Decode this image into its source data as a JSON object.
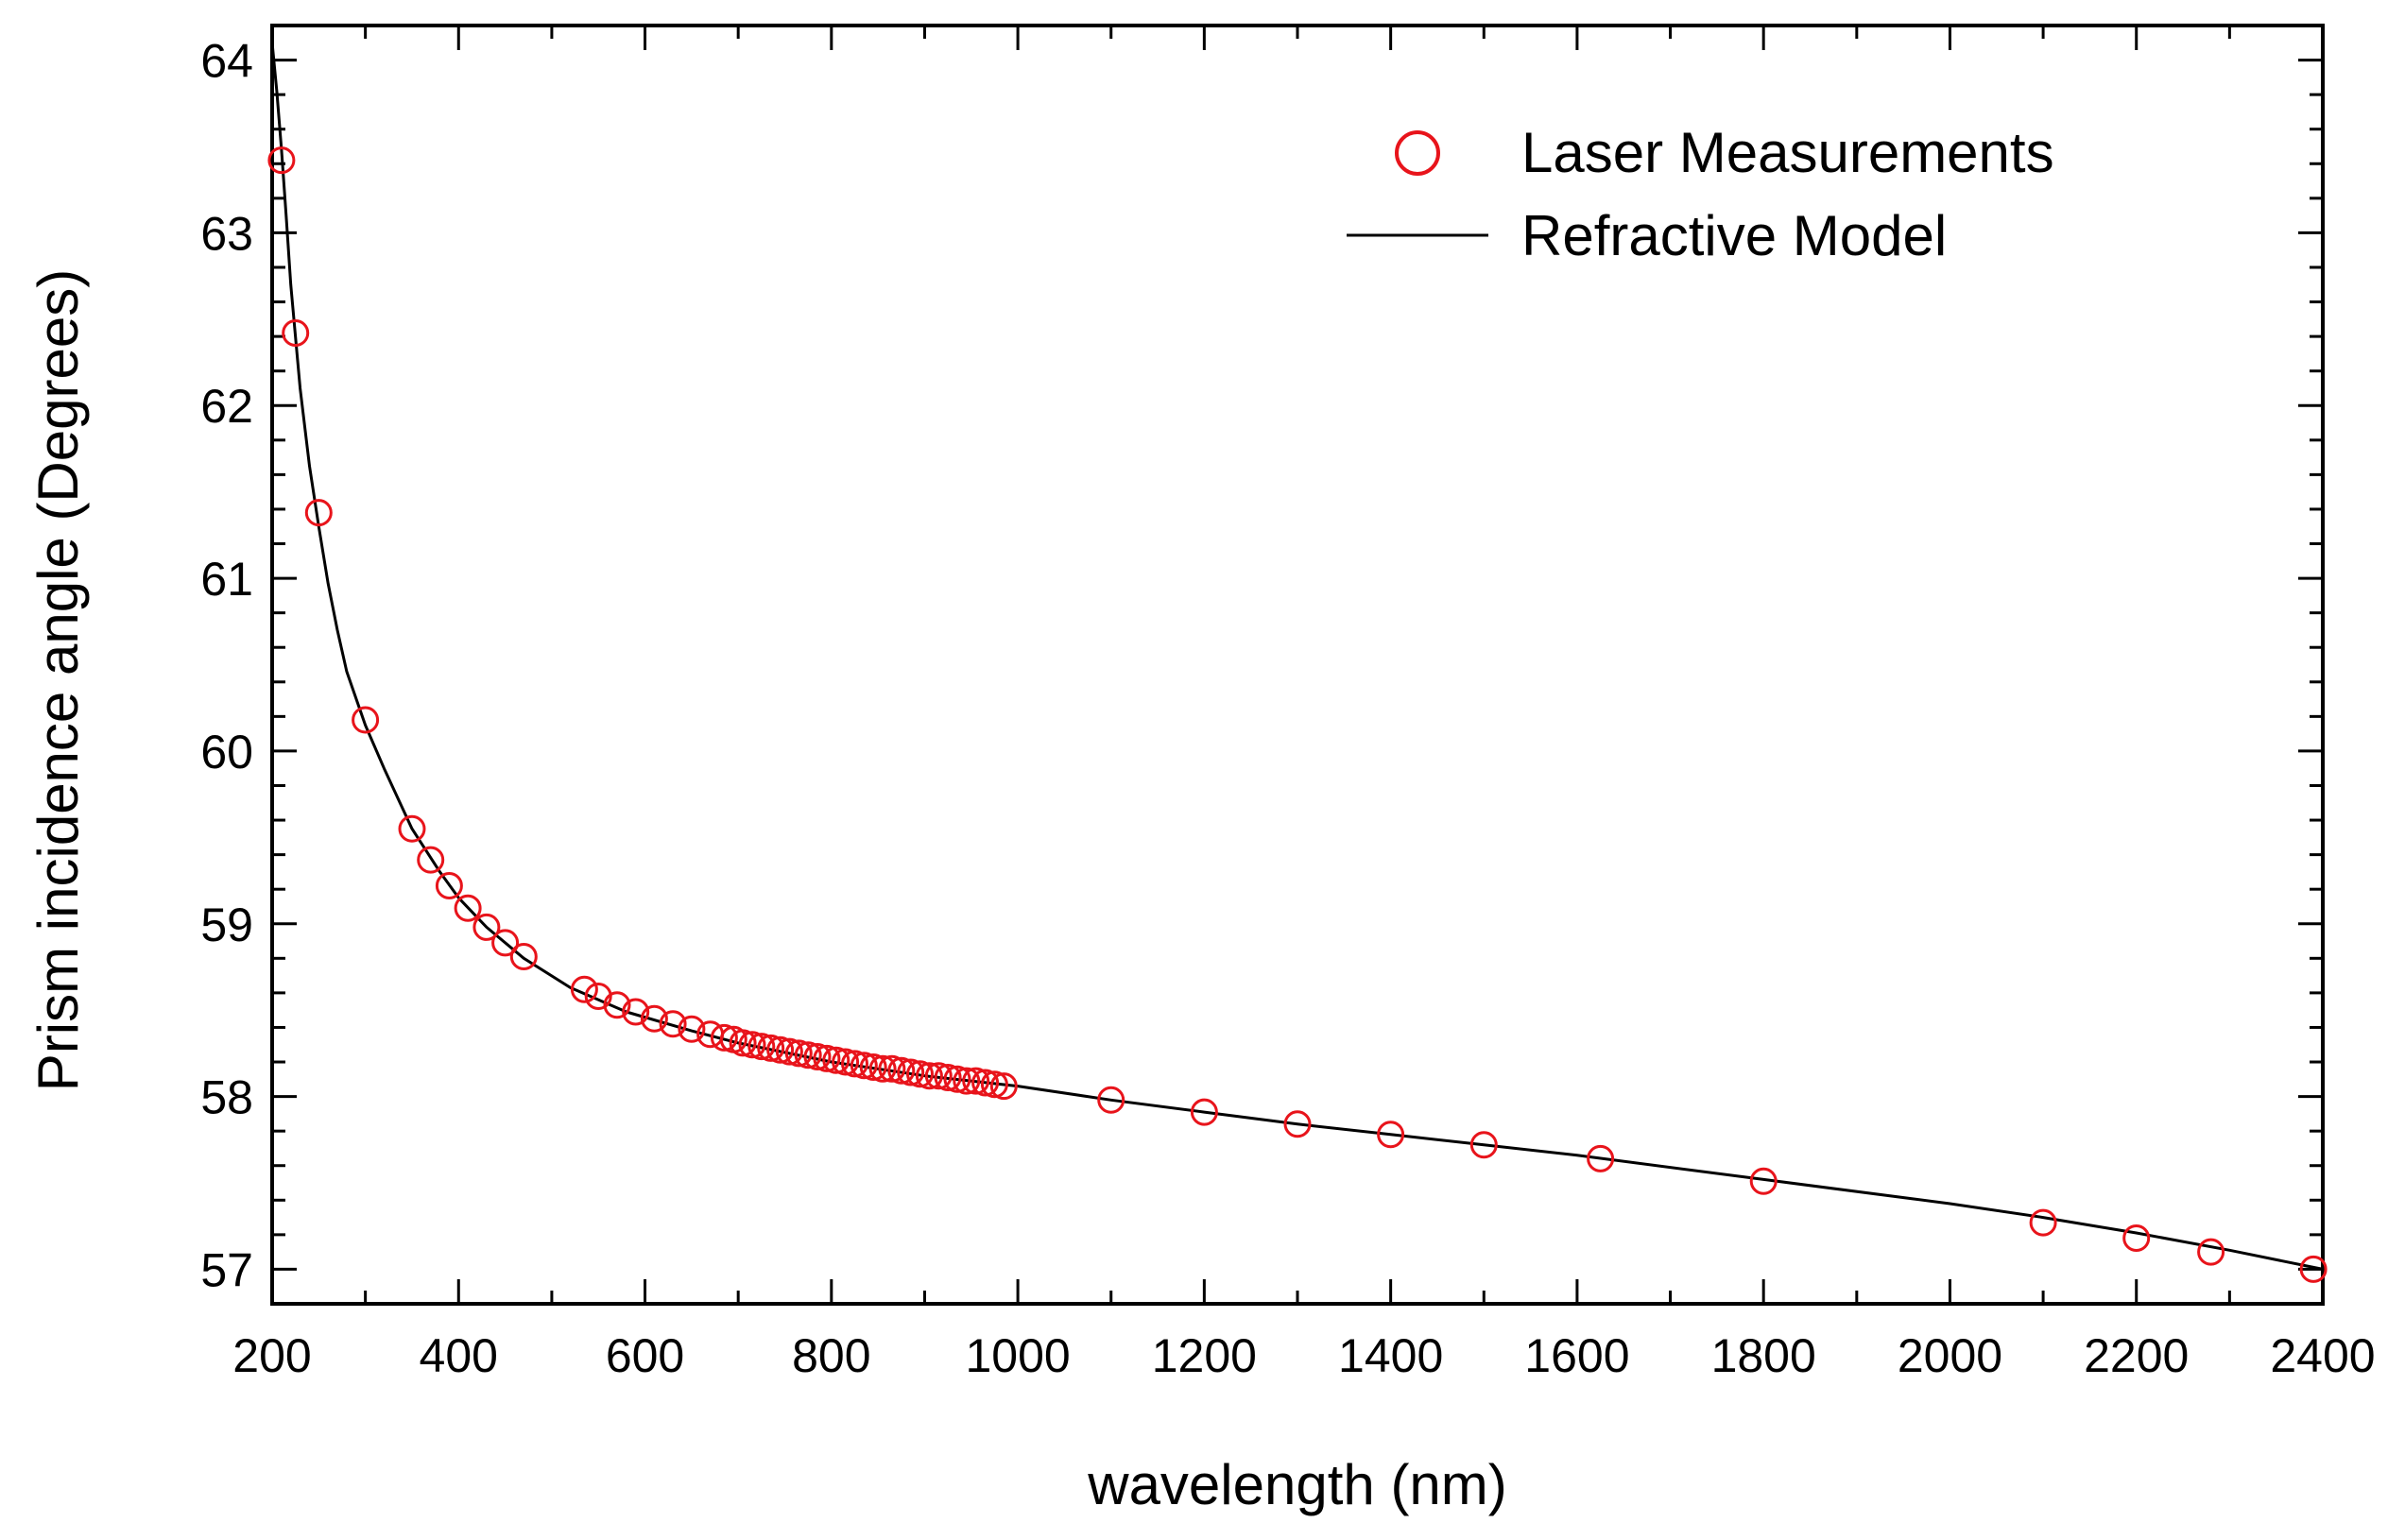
{
  "chart_data": {
    "type": "scatter",
    "title": "",
    "xlabel": "wavelength (nm)",
    "ylabel": "Prism incidence angle (Degrees)",
    "xlim": [
      200,
      2400
    ],
    "ylim": [
      56.8,
      64.2
    ],
    "xticks": [
      200,
      400,
      600,
      800,
      1000,
      1200,
      1400,
      1600,
      1800,
      2000,
      2200,
      2400
    ],
    "xtick_labels": [
      "200",
      "400",
      "600",
      "800",
      "1000",
      "1200",
      "1400",
      "1600",
      "1800",
      "2000",
      "2200",
      "2400"
    ],
    "yticks": [
      57,
      58,
      59,
      60,
      61,
      62,
      63,
      64
    ],
    "ytick_labels": [
      "57",
      "58",
      "59",
      "60",
      "61",
      "62",
      "63",
      "64"
    ],
    "grid": false,
    "legend_position": "top-right",
    "series": [
      {
        "name": "Laser Measurements",
        "kind": "markers",
        "marker": "open-circle",
        "color": "#e8141b",
        "x": [
          210,
          225,
          250,
          300,
          350,
          370,
          390,
          410,
          430,
          450,
          470,
          535,
          550,
          570,
          590,
          610,
          630,
          650,
          670,
          685,
          695,
          705,
          715,
          725,
          735,
          745,
          755,
          765,
          775,
          785,
          795,
          805,
          815,
          825,
          835,
          845,
          855,
          865,
          875,
          885,
          895,
          905,
          915,
          925,
          935,
          945,
          955,
          965,
          975,
          985,
          1100,
          1200,
          1300,
          1400,
          1500,
          1625,
          1800,
          2100,
          2200,
          2280,
          2390
        ],
        "y": [
          63.42,
          62.42,
          61.38,
          60.18,
          59.55,
          59.37,
          59.22,
          59.09,
          58.98,
          58.89,
          58.81,
          58.62,
          58.58,
          58.53,
          58.49,
          58.45,
          58.42,
          58.39,
          58.36,
          58.34,
          58.33,
          58.31,
          58.3,
          58.29,
          58.28,
          58.27,
          58.26,
          58.25,
          58.24,
          58.23,
          58.22,
          58.21,
          58.2,
          58.19,
          58.18,
          58.17,
          58.16,
          58.16,
          58.15,
          58.14,
          58.13,
          58.12,
          58.12,
          58.11,
          58.1,
          58.09,
          58.09,
          58.08,
          58.07,
          58.06,
          57.98,
          57.91,
          57.84,
          57.78,
          57.72,
          57.64,
          57.51,
          57.27,
          57.18,
          57.1,
          57.0
        ]
      },
      {
        "name": "Refractive Model",
        "kind": "line",
        "color": "#000000",
        "x": [
          200,
          205,
          210,
          215,
          220,
          230,
          240,
          250,
          260,
          270,
          280,
          300,
          320,
          350,
          380,
          400,
          430,
          470,
          520,
          580,
          650,
          700,
          800,
          900,
          1000,
          1100,
          1200,
          1300,
          1400,
          1500,
          1600,
          1800,
          2000,
          2100,
          2200,
          2300,
          2400
        ],
        "y": [
          64.1,
          63.82,
          63.48,
          63.1,
          62.7,
          62.1,
          61.65,
          61.3,
          60.97,
          60.7,
          60.46,
          60.15,
          59.9,
          59.55,
          59.3,
          59.15,
          58.98,
          58.8,
          58.63,
          58.49,
          58.38,
          58.31,
          58.2,
          58.12,
          58.06,
          57.98,
          57.91,
          57.84,
          57.78,
          57.72,
          57.66,
          57.52,
          57.38,
          57.3,
          57.21,
          57.11,
          57.0
        ]
      }
    ]
  }
}
